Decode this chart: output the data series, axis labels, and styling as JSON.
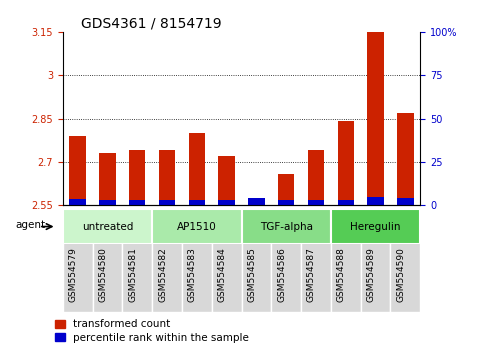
{
  "title": "GDS4361 / 8154719",
  "samples": [
    "GSM554579",
    "GSM554580",
    "GSM554581",
    "GSM554582",
    "GSM554583",
    "GSM554584",
    "GSM554585",
    "GSM554586",
    "GSM554587",
    "GSM554588",
    "GSM554589",
    "GSM554590"
  ],
  "red_values": [
    2.79,
    2.73,
    2.74,
    2.74,
    2.8,
    2.72,
    2.56,
    2.66,
    2.74,
    2.84,
    3.22,
    2.87
  ],
  "blue_values": [
    0.022,
    0.018,
    0.02,
    0.02,
    0.02,
    0.02,
    0.025,
    0.02,
    0.02,
    0.02,
    0.028,
    0.024
  ],
  "ymin": 2.55,
  "ymax": 3.15,
  "yticks": [
    2.55,
    2.7,
    2.85,
    3.0,
    3.15
  ],
  "ytick_labels": [
    "2.55",
    "2.7",
    "2.85",
    "3",
    "3.15"
  ],
  "y2ticks": [
    0,
    25,
    50,
    75,
    100
  ],
  "y2tick_labels": [
    "0",
    "25",
    "50",
    "75",
    "100%"
  ],
  "grid_lines": [
    2.7,
    2.85,
    3.0
  ],
  "agent_groups": [
    {
      "label": "untreated",
      "start": 0,
      "end": 3,
      "color": "#ccf5cc"
    },
    {
      "label": "AP1510",
      "start": 3,
      "end": 6,
      "color": "#aaeaaa"
    },
    {
      "label": "TGF-alpha",
      "start": 6,
      "end": 9,
      "color": "#88dd88"
    },
    {
      "label": "Heregulin",
      "start": 9,
      "end": 12,
      "color": "#55cc55"
    }
  ],
  "bar_width": 0.55,
  "red_color": "#cc2200",
  "blue_color": "#0000cc",
  "title_fontsize": 10,
  "tick_fontsize": 7,
  "legend_fontsize": 7.5,
  "left_color": "#cc2200",
  "right_color": "#0000cc",
  "plot_bg": "#ffffff",
  "sample_bg": "#d8d8d8"
}
